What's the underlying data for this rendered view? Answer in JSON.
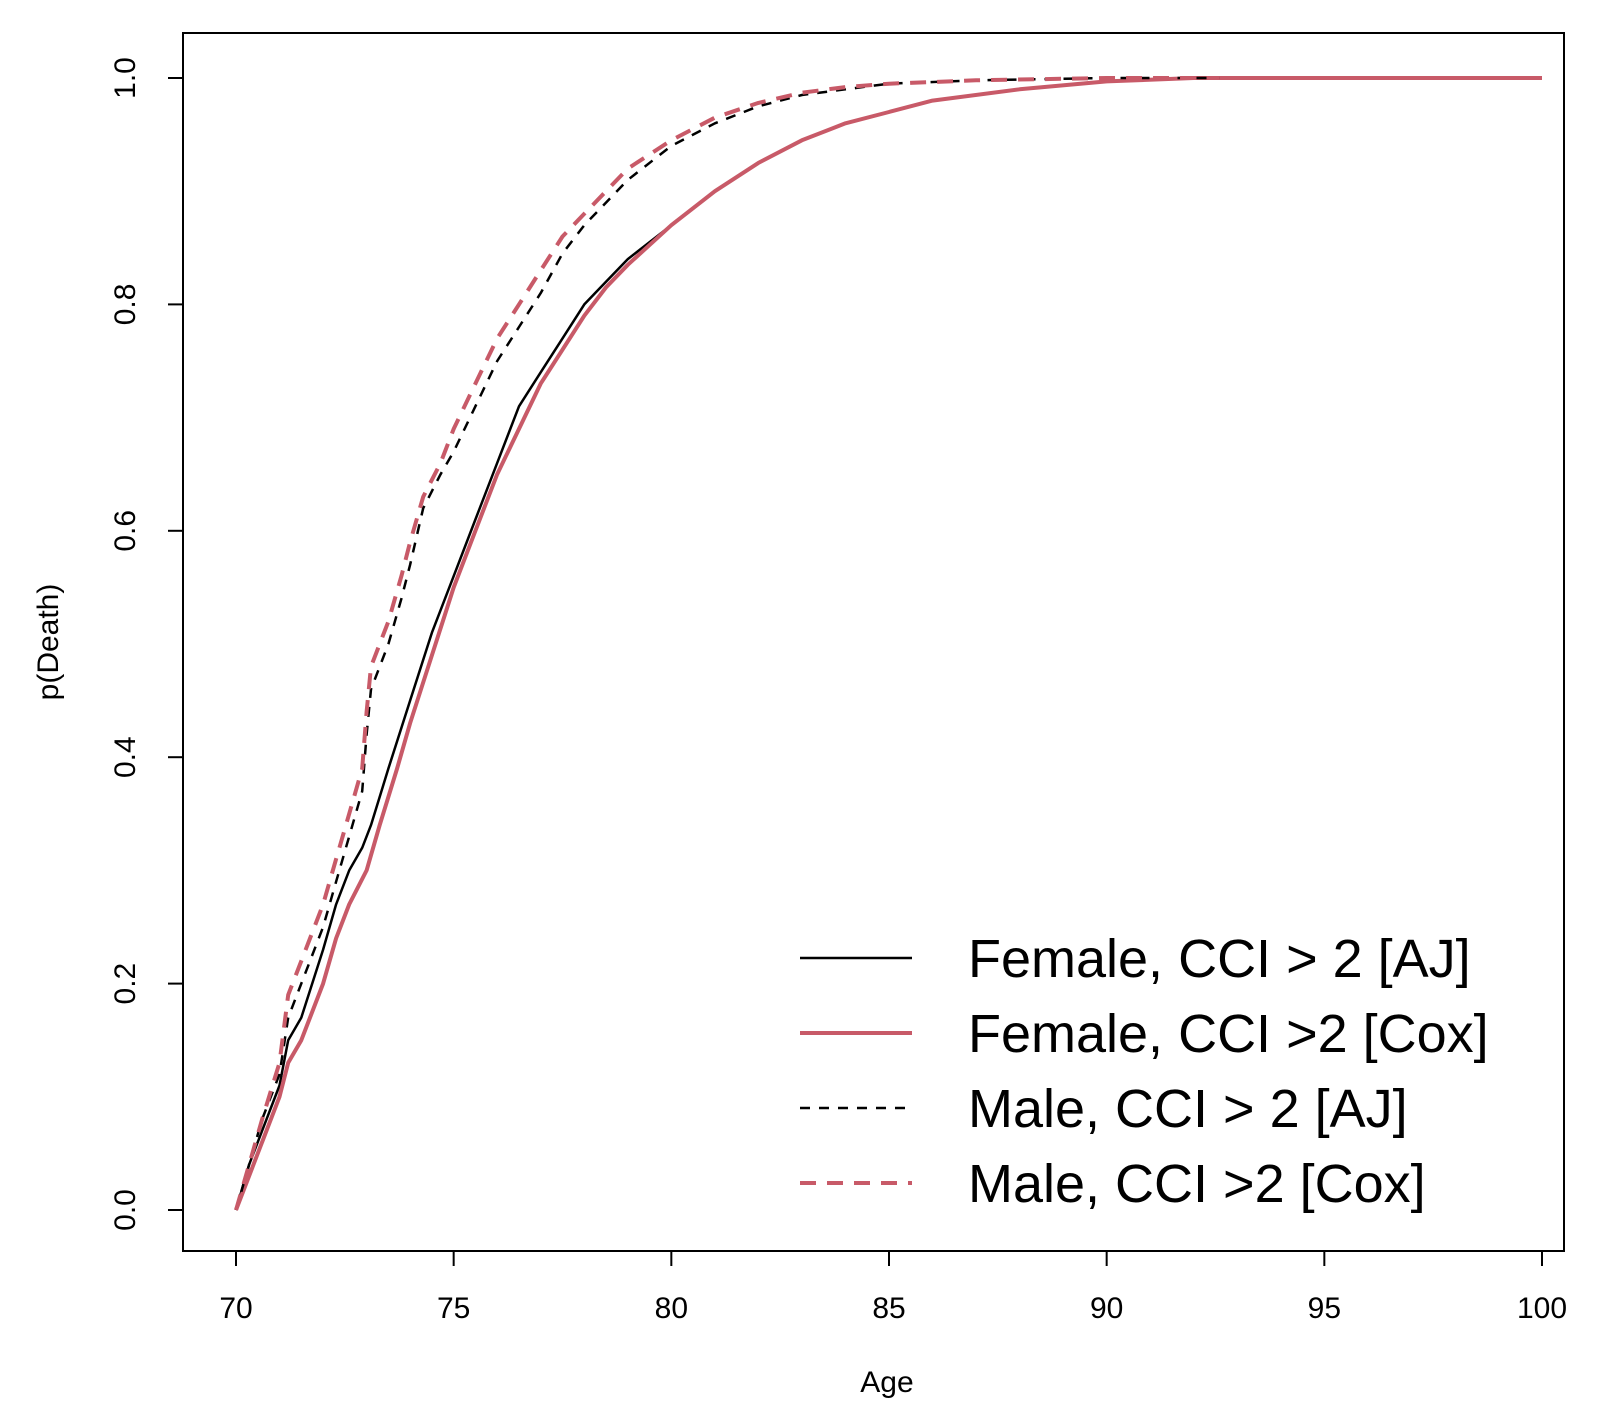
{
  "chart_data": {
    "type": "line",
    "title": "",
    "xlabel": "Age",
    "ylabel": "p(Death)",
    "xlim": [
      70,
      100
    ],
    "ylim": [
      0,
      1
    ],
    "x_ticks": [
      "70",
      "75",
      "80",
      "85",
      "90",
      "95",
      "100"
    ],
    "y_ticks": [
      "0.0",
      "0.2",
      "0.4",
      "0.6",
      "0.8",
      "1.0"
    ],
    "grid": false,
    "legend_position": "bottom-right",
    "series": [
      {
        "name": "Female, CCI > 2 [AJ]",
        "color": "#000000",
        "style": "solid",
        "points": [
          [
            70,
            0
          ],
          [
            70.3,
            0.04
          ],
          [
            70.6,
            0.07
          ],
          [
            71,
            0.11
          ],
          [
            71.2,
            0.15
          ],
          [
            71.5,
            0.17
          ],
          [
            72,
            0.23
          ],
          [
            72.3,
            0.27
          ],
          [
            72.6,
            0.3
          ],
          [
            72.9,
            0.32
          ],
          [
            73.1,
            0.34
          ],
          [
            73.5,
            0.39
          ],
          [
            74,
            0.45
          ],
          [
            74.5,
            0.51
          ],
          [
            75,
            0.56
          ],
          [
            75.5,
            0.61
          ],
          [
            76,
            0.66
          ],
          [
            76.5,
            0.71
          ],
          [
            77,
            0.74
          ],
          [
            77.5,
            0.77
          ],
          [
            78,
            0.8
          ],
          [
            78.5,
            0.82
          ],
          [
            79,
            0.84
          ],
          [
            80,
            0.87
          ],
          [
            81,
            0.9
          ],
          [
            82,
            0.925
          ],
          [
            83,
            0.945
          ],
          [
            84,
            0.96
          ],
          [
            85,
            0.97
          ],
          [
            86,
            0.98
          ],
          [
            88,
            0.99
          ],
          [
            90,
            0.997
          ],
          [
            92,
            1.0
          ],
          [
            100,
            1.0
          ]
        ]
      },
      {
        "name": "Female, CCI >2 [Cox]",
        "color": "#c85a68",
        "style": "solid",
        "points": [
          [
            70,
            0
          ],
          [
            70.3,
            0.03
          ],
          [
            70.6,
            0.06
          ],
          [
            71,
            0.1
          ],
          [
            71.2,
            0.13
          ],
          [
            71.5,
            0.15
          ],
          [
            72,
            0.2
          ],
          [
            72.3,
            0.24
          ],
          [
            72.6,
            0.27
          ],
          [
            73,
            0.3
          ],
          [
            73.3,
            0.34
          ],
          [
            73.7,
            0.39
          ],
          [
            74,
            0.43
          ],
          [
            74.5,
            0.49
          ],
          [
            75,
            0.55
          ],
          [
            75.5,
            0.6
          ],
          [
            76,
            0.65
          ],
          [
            76.5,
            0.69
          ],
          [
            77,
            0.73
          ],
          [
            77.5,
            0.76
          ],
          [
            78,
            0.79
          ],
          [
            78.5,
            0.815
          ],
          [
            79,
            0.835
          ],
          [
            80,
            0.87
          ],
          [
            81,
            0.9
          ],
          [
            82,
            0.925
          ],
          [
            83,
            0.945
          ],
          [
            84,
            0.96
          ],
          [
            85,
            0.97
          ],
          [
            86,
            0.98
          ],
          [
            88,
            0.99
          ],
          [
            90,
            0.997
          ],
          [
            92,
            1.0
          ],
          [
            100,
            1.0
          ]
        ]
      },
      {
        "name": "Male, CCI > 2 [AJ]",
        "color": "#000000",
        "style": "dashed",
        "points": [
          [
            70,
            0
          ],
          [
            70.3,
            0.04
          ],
          [
            70.6,
            0.08
          ],
          [
            71,
            0.12
          ],
          [
            71.2,
            0.17
          ],
          [
            71.5,
            0.2
          ],
          [
            72,
            0.25
          ],
          [
            72.3,
            0.29
          ],
          [
            72.6,
            0.33
          ],
          [
            72.9,
            0.37
          ],
          [
            73,
            0.42
          ],
          [
            73.1,
            0.46
          ],
          [
            73.5,
            0.5
          ],
          [
            73.8,
            0.54
          ],
          [
            74,
            0.57
          ],
          [
            74.3,
            0.62
          ],
          [
            74.7,
            0.65
          ],
          [
            75,
            0.67
          ],
          [
            75.5,
            0.71
          ],
          [
            76,
            0.75
          ],
          [
            76.5,
            0.78
          ],
          [
            77,
            0.81
          ],
          [
            77.5,
            0.845
          ],
          [
            78,
            0.87
          ],
          [
            79,
            0.91
          ],
          [
            80,
            0.94
          ],
          [
            81,
            0.96
          ],
          [
            82,
            0.975
          ],
          [
            83,
            0.985
          ],
          [
            84,
            0.99
          ],
          [
            85,
            0.995
          ],
          [
            87,
            0.998
          ],
          [
            90,
            1.0
          ],
          [
            92.6,
            1.0
          ]
        ]
      },
      {
        "name": "Male, CCI >2 [Cox]",
        "color": "#c85a68",
        "style": "dashed",
        "points": [
          [
            70,
            0
          ],
          [
            70.3,
            0.04
          ],
          [
            70.6,
            0.08
          ],
          [
            71,
            0.13
          ],
          [
            71.2,
            0.19
          ],
          [
            71.5,
            0.22
          ],
          [
            72,
            0.27
          ],
          [
            72.3,
            0.31
          ],
          [
            72.6,
            0.35
          ],
          [
            72.9,
            0.39
          ],
          [
            73,
            0.44
          ],
          [
            73.1,
            0.48
          ],
          [
            73.5,
            0.52
          ],
          [
            73.8,
            0.56
          ],
          [
            74,
            0.59
          ],
          [
            74.3,
            0.63
          ],
          [
            74.7,
            0.66
          ],
          [
            75,
            0.69
          ],
          [
            75.5,
            0.73
          ],
          [
            76,
            0.77
          ],
          [
            76.5,
            0.8
          ],
          [
            77,
            0.83
          ],
          [
            77.5,
            0.86
          ],
          [
            78,
            0.88
          ],
          [
            79,
            0.92
          ],
          [
            80,
            0.945
          ],
          [
            81,
            0.965
          ],
          [
            82,
            0.978
          ],
          [
            83,
            0.987
          ],
          [
            84,
            0.992
          ],
          [
            85,
            0.995
          ],
          [
            87,
            0.998
          ],
          [
            90,
            1.0
          ],
          [
            92.6,
            1.0
          ]
        ]
      }
    ]
  }
}
